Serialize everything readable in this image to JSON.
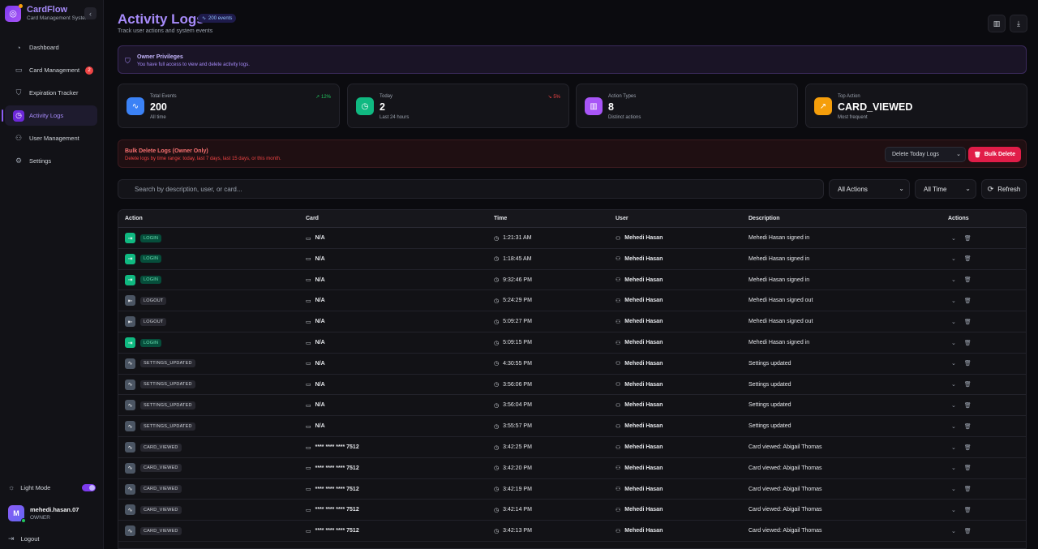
{
  "brand": {
    "name": "CardFlow",
    "subtitle": "Card Management System",
    "collapse_icon": "‹"
  },
  "sidebar": {
    "items": [
      {
        "label": "Dashboard",
        "icon": "gauge-icon",
        "glyph": "◔"
      },
      {
        "label": "Card Management",
        "icon": "card-icon",
        "glyph": "▭",
        "badge": "2"
      },
      {
        "label": "Expiration Tracker",
        "icon": "shield-icon",
        "glyph": "⛉"
      },
      {
        "label": "Activity Logs",
        "icon": "history-icon",
        "glyph": "◷"
      },
      {
        "label": "User Management",
        "icon": "users-icon",
        "glyph": "⚇"
      },
      {
        "label": "Settings",
        "icon": "gear-icon",
        "glyph": "⚙"
      }
    ],
    "light_mode_label": "Light Mode",
    "user": {
      "initial": "M",
      "name": "mehedi.hasan.07",
      "role": "OWNER"
    },
    "logout_label": "Logout"
  },
  "header": {
    "title": "Activity Logs",
    "events_badge": "200 events",
    "subtitle": "Track user actions and system events"
  },
  "owner_banner": {
    "title": "Owner Privileges",
    "description": "You have full access to view and delete activity logs."
  },
  "stats": [
    {
      "label": "Total Events",
      "value": "200",
      "sub": "All time",
      "trend": "↗ 12%",
      "trend_color": "#22c55e",
      "color": "#3b82f6",
      "icon": "activity-icon",
      "glyph": "∿"
    },
    {
      "label": "Today",
      "value": "2",
      "sub": "Last 24 hours",
      "trend": "↘ 5%",
      "trend_color": "#ef4444",
      "color": "#10b981",
      "icon": "clock-icon",
      "glyph": "◷"
    },
    {
      "label": "Action Types",
      "value": "8",
      "sub": "Distinct actions",
      "trend": "",
      "trend_color": "#9ca3af",
      "color": "#a855f7",
      "icon": "bar-chart-icon",
      "glyph": "▥"
    },
    {
      "label": "Top Action",
      "value": "CARD_VIEWED",
      "sub": "Most frequent",
      "trend": "",
      "trend_color": "#9ca3af",
      "color": "#f59e0b",
      "icon": "trending-up-icon",
      "glyph": "↗"
    }
  ],
  "bulk": {
    "title": "Bulk Delete Logs (Owner Only)",
    "description": "Delete logs by time range: today, last 7 days, last 15 days, or this month.",
    "select_value": "Delete Today Logs",
    "button_label": "Bulk Delete"
  },
  "filters": {
    "search_placeholder": "Search by description, user, or card...",
    "action_filter": "All Actions",
    "time_filter": "All Time",
    "refresh_label": "Refresh"
  },
  "table": {
    "headers": [
      "Action",
      "Card",
      "Time",
      "User",
      "Description",
      "Actions"
    ],
    "rows": [
      {
        "action": "LOGIN",
        "type": "login",
        "card": "N/A",
        "time": "1:21:31 AM",
        "user": "Mehedi Hasan",
        "description": "Mehedi Hasan signed in"
      },
      {
        "action": "LOGIN",
        "type": "login",
        "card": "N/A",
        "time": "1:18:45 AM",
        "user": "Mehedi Hasan",
        "description": "Mehedi Hasan signed in"
      },
      {
        "action": "LOGIN",
        "type": "login",
        "card": "N/A",
        "time": "9:32:46 PM",
        "user": "Mehedi Hasan",
        "description": "Mehedi Hasan signed in"
      },
      {
        "action": "LOGOUT",
        "type": "logout",
        "card": "N/A",
        "time": "5:24:29 PM",
        "user": "Mehedi Hasan",
        "description": "Mehedi Hasan signed out"
      },
      {
        "action": "LOGOUT",
        "type": "logout",
        "card": "N/A",
        "time": "5:09:27 PM",
        "user": "Mehedi Hasan",
        "description": "Mehedi Hasan signed out"
      },
      {
        "action": "LOGIN",
        "type": "login",
        "card": "N/A",
        "time": "5:09:15 PM",
        "user": "Mehedi Hasan",
        "description": "Mehedi Hasan signed in"
      },
      {
        "action": "SETTINGS_UPDATED",
        "type": "other",
        "card": "N/A",
        "time": "4:30:55 PM",
        "user": "Mehedi Hasan",
        "description": "Settings updated"
      },
      {
        "action": "SETTINGS_UPDATED",
        "type": "other",
        "card": "N/A",
        "time": "3:56:06 PM",
        "user": "Mehedi Hasan",
        "description": "Settings updated"
      },
      {
        "action": "SETTINGS_UPDATED",
        "type": "other",
        "card": "N/A",
        "time": "3:56:04 PM",
        "user": "Mehedi Hasan",
        "description": "Settings updated"
      },
      {
        "action": "SETTINGS_UPDATED",
        "type": "other",
        "card": "N/A",
        "time": "3:55:57 PM",
        "user": "Mehedi Hasan",
        "description": "Settings updated"
      },
      {
        "action": "CARD_VIEWED",
        "type": "other",
        "card": "**** **** **** 7512",
        "time": "3:42:25 PM",
        "user": "Mehedi Hasan",
        "description": "Card viewed: Abigail Thomas"
      },
      {
        "action": "CARD_VIEWED",
        "type": "other",
        "card": "**** **** **** 7512",
        "time": "3:42:20 PM",
        "user": "Mehedi Hasan",
        "description": "Card viewed: Abigail Thomas"
      },
      {
        "action": "CARD_VIEWED",
        "type": "other",
        "card": "**** **** **** 7512",
        "time": "3:42:19 PM",
        "user": "Mehedi Hasan",
        "description": "Card viewed: Abigail Thomas"
      },
      {
        "action": "CARD_VIEWED",
        "type": "other",
        "card": "**** **** **** 7512",
        "time": "3:42:14 PM",
        "user": "Mehedi Hasan",
        "description": "Card viewed: Abigail Thomas"
      },
      {
        "action": "CARD_VIEWED",
        "type": "other",
        "card": "**** **** **** 7512",
        "time": "3:42:13 PM",
        "user": "Mehedi Hasan",
        "description": "Card viewed: Abigail Thomas"
      }
    ]
  }
}
